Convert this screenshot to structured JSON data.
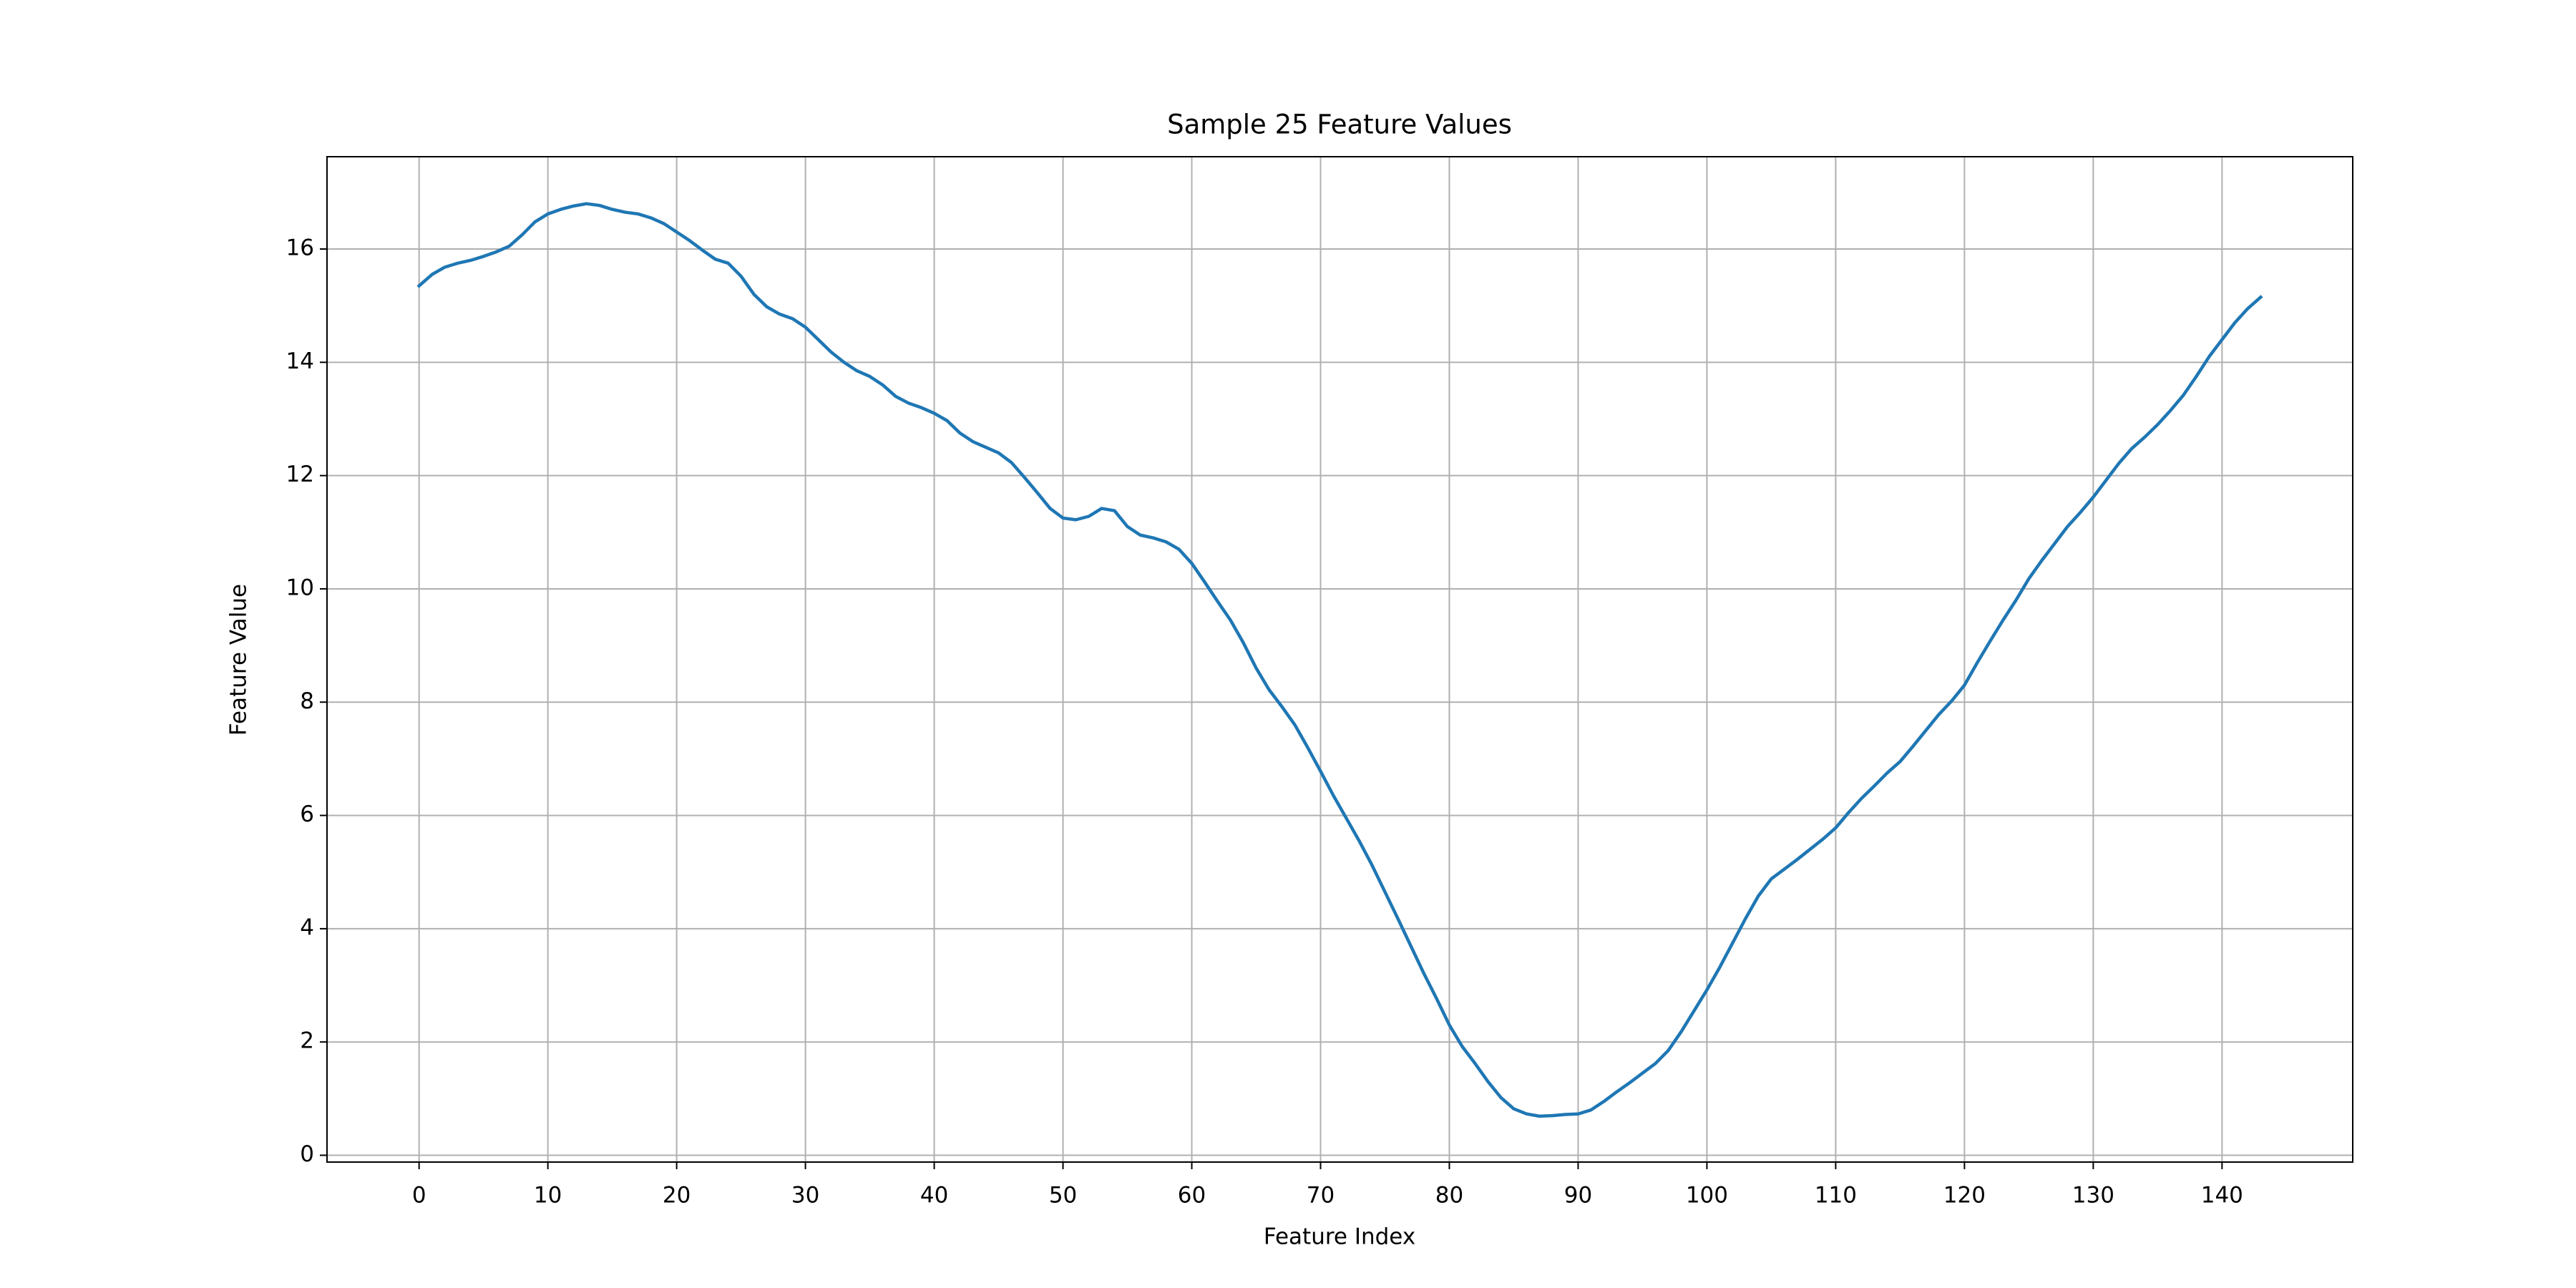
{
  "chart_data": {
    "type": "line",
    "title": "Sample 25 Feature Values",
    "xlabel": "Feature Index",
    "ylabel": "Feature Value",
    "x": [
      0,
      1,
      2,
      3,
      4,
      5,
      6,
      7,
      8,
      9,
      10,
      11,
      12,
      13,
      14,
      15,
      16,
      17,
      18,
      19,
      20,
      21,
      22,
      23,
      24,
      25,
      26,
      27,
      28,
      29,
      30,
      31,
      32,
      33,
      34,
      35,
      36,
      37,
      38,
      39,
      40,
      41,
      42,
      43,
      44,
      45,
      46,
      47,
      48,
      49,
      50,
      51,
      52,
      53,
      54,
      55,
      56,
      57,
      58,
      59,
      60,
      61,
      62,
      63,
      64,
      65,
      66,
      67,
      68,
      69,
      70,
      71,
      72,
      73,
      74,
      75,
      76,
      77,
      78,
      79,
      80,
      81,
      82,
      83,
      84,
      85,
      86,
      87,
      88,
      89,
      90,
      91,
      92,
      93,
      94,
      95,
      96,
      97,
      98,
      99,
      100,
      101,
      102,
      103,
      104,
      105,
      106,
      107,
      108,
      109,
      110,
      111,
      112,
      113,
      114,
      115,
      116,
      117,
      118,
      119,
      120,
      121,
      122,
      123,
      124,
      125,
      126,
      127,
      128,
      129,
      130,
      131,
      132,
      133,
      134,
      135,
      136,
      137,
      138,
      139,
      140,
      141,
      142,
      143
    ],
    "series": [
      {
        "color": "#1f77b4",
        "values": [
          15.35,
          15.55,
          15.68,
          15.75,
          15.8,
          15.87,
          15.95,
          16.05,
          16.25,
          16.48,
          16.62,
          16.7,
          16.76,
          16.8,
          16.77,
          16.7,
          16.65,
          16.62,
          16.55,
          16.45,
          16.3,
          16.15,
          15.98,
          15.82,
          15.75,
          15.52,
          15.2,
          14.98,
          14.85,
          14.77,
          14.62,
          14.4,
          14.18,
          14.0,
          13.85,
          13.75,
          13.6,
          13.4,
          13.28,
          13.2,
          13.1,
          12.97,
          12.75,
          12.6,
          12.5,
          12.4,
          12.23,
          11.97,
          11.7,
          11.42,
          11.25,
          11.22,
          11.28,
          11.42,
          11.38,
          11.1,
          10.95,
          10.9,
          10.83,
          10.7,
          10.45,
          10.12,
          9.78,
          9.45,
          9.05,
          8.6,
          8.22,
          7.92,
          7.6,
          7.2,
          6.78,
          6.35,
          5.95,
          5.55,
          5.12,
          4.65,
          4.18,
          3.7,
          3.22,
          2.77,
          2.3,
          1.92,
          1.62,
          1.3,
          1.02,
          0.82,
          0.73,
          0.69,
          0.7,
          0.72,
          0.73,
          0.8,
          0.95,
          1.12,
          1.28,
          1.45,
          1.62,
          1.85,
          2.18,
          2.55,
          2.92,
          3.32,
          3.75,
          4.18,
          4.58,
          4.88,
          5.05,
          5.22,
          5.4,
          5.58,
          5.78,
          6.05,
          6.3,
          6.52,
          6.75,
          6.95,
          7.22,
          7.5,
          7.78,
          8.02,
          8.3,
          8.7,
          9.08,
          9.45,
          9.8,
          10.18,
          10.5,
          10.8,
          11.1,
          11.35,
          11.62,
          11.92,
          12.22,
          12.48,
          12.68,
          12.9,
          13.15,
          13.42,
          13.75,
          14.1,
          14.4,
          14.7,
          14.95,
          15.15
        ]
      }
    ],
    "xlim": [
      -7.15,
      150.15
    ],
    "ylim": [
      -0.12,
      17.63
    ],
    "xticks": [
      0,
      10,
      20,
      30,
      40,
      50,
      60,
      70,
      80,
      90,
      100,
      110,
      120,
      130,
      140
    ],
    "yticks": [
      0,
      2,
      4,
      6,
      8,
      10,
      12,
      14,
      16
    ],
    "grid": true
  }
}
